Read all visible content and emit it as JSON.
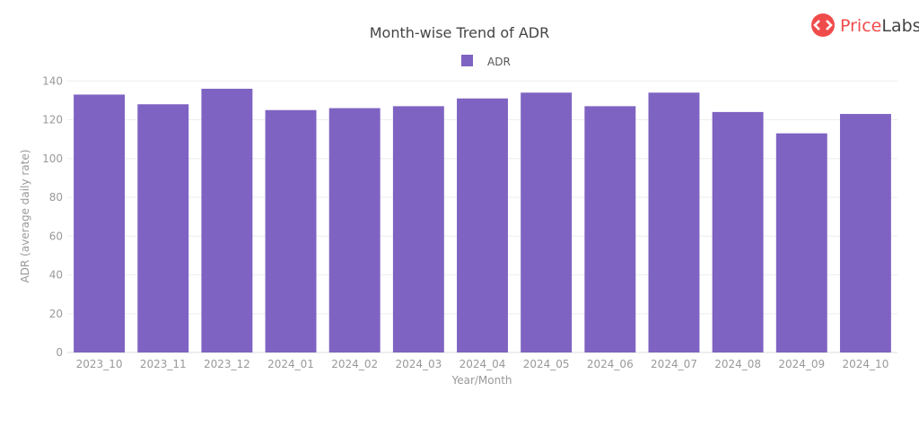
{
  "brand": {
    "logo_text": "PriceLabs",
    "logo_color": "#f04b4b"
  },
  "chart_data": {
    "type": "bar",
    "title": "Month-wise Trend of ADR",
    "xlabel": "Year/Month",
    "ylabel": "ADR (average daily rate)",
    "categories": [
      "2023_10",
      "2023_11",
      "2023_12",
      "2024_01",
      "2024_02",
      "2024_03",
      "2024_04",
      "2024_05",
      "2024_06",
      "2024_07",
      "2024_08",
      "2024_09",
      "2024_10"
    ],
    "series": [
      {
        "name": "ADR",
        "color": "#7f63c2",
        "values": [
          133,
          128,
          136,
          125,
          126,
          127,
          131,
          134,
          127,
          134,
          124,
          113,
          123
        ]
      }
    ],
    "ylim": [
      0,
      140
    ],
    "yticks": [
      0,
      20,
      40,
      60,
      80,
      100,
      120,
      140
    ],
    "grid": true,
    "legend": "top-center"
  }
}
